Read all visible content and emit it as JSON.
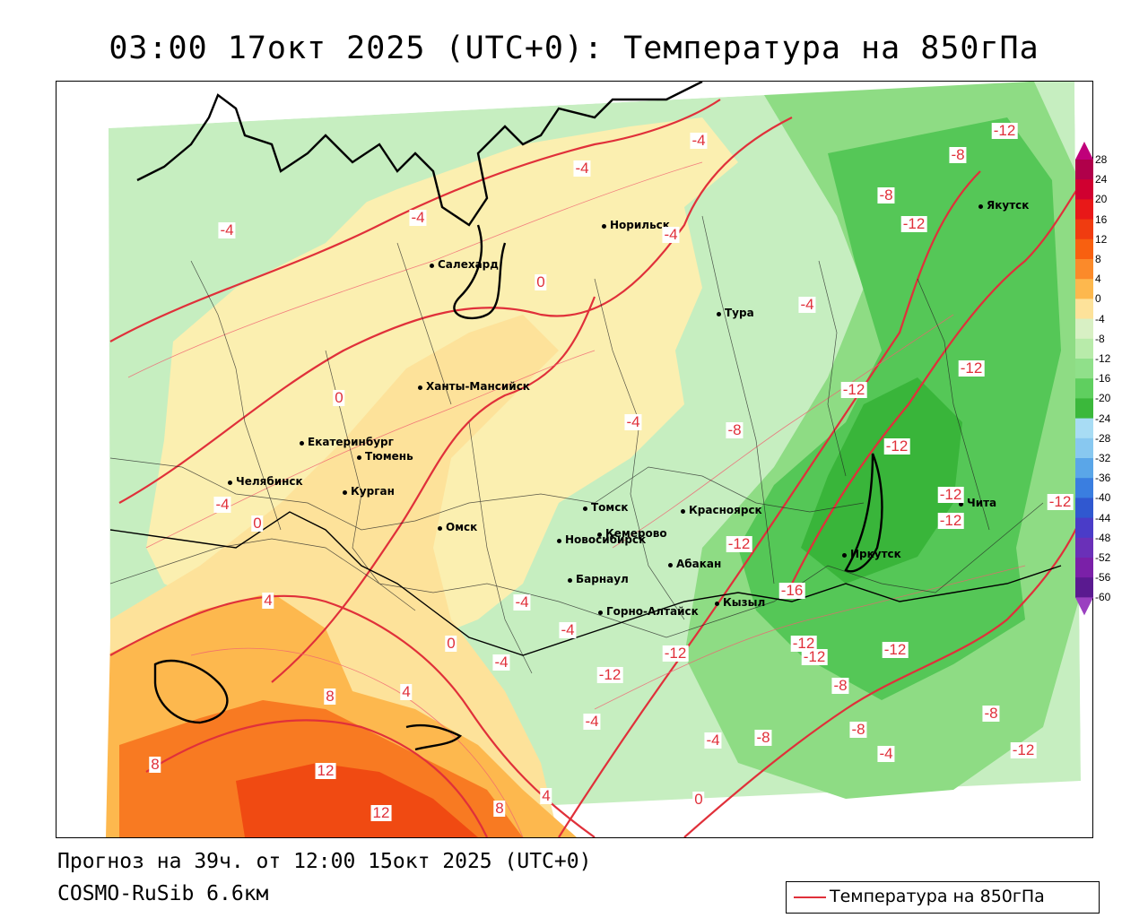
{
  "title": "03:00 17окт 2025 (UTC+0): Температура на 850гПа",
  "footer": {
    "forecast": "Прогноз на 39ч. от 12:00 15окт 2025 (UTC+0)",
    "model": "COSMO-RuSib 6.6км"
  },
  "legend": {
    "label": "Температура на 850гПа",
    "line_color": "#e0303a"
  },
  "colorbar": {
    "ticks": [
      "28",
      "24",
      "20",
      "16",
      "12",
      "8",
      "4",
      "0",
      "-4",
      "-8",
      "-12",
      "-16",
      "-20",
      "-24",
      "-28",
      "-32",
      "-36",
      "-40",
      "-44",
      "-48",
      "-52",
      "-56",
      "-60"
    ],
    "colors": [
      "#b0004a",
      "#d00030",
      "#e81818",
      "#f03c10",
      "#f86010",
      "#fb8a2a",
      "#fdb84e",
      "#fde29a",
      "#d8f0c4",
      "#b8ebaa",
      "#90e08a",
      "#5fcf5f",
      "#3bb83b",
      "#a8dcf4",
      "#88c8f0",
      "#5aa6e8",
      "#3a7ee0",
      "#3058d0",
      "#4a3cc8",
      "#6a30b8",
      "#7a20a8",
      "#5a1a90"
    ]
  },
  "cities": [
    {
      "name": "Норильск"
    },
    {
      "name": "Салехард"
    },
    {
      "name": "Тура"
    },
    {
      "name": "Якутск"
    },
    {
      "name": "Ханты-Мансийск"
    },
    {
      "name": "Екатеринбург"
    },
    {
      "name": "Тюмень"
    },
    {
      "name": "Челябинск"
    },
    {
      "name": "Курган"
    },
    {
      "name": "Омск"
    },
    {
      "name": "Новосибирск"
    },
    {
      "name": "Томск"
    },
    {
      "name": "Кемерово"
    },
    {
      "name": "Красноярск"
    },
    {
      "name": "Абакан"
    },
    {
      "name": "Барнаул"
    },
    {
      "name": "Горно-Алтайск"
    },
    {
      "name": "Кызыл"
    },
    {
      "name": "Иркутск"
    },
    {
      "name": "Чита"
    }
  ],
  "isotherm_labels": [
    "-4",
    "-4",
    "-4",
    "-4",
    "-4",
    "-4",
    "-4",
    "-4",
    "-4",
    "-4",
    "-4",
    "-4",
    "-4",
    "-4",
    "0",
    "0",
    "0",
    "0",
    "0",
    "4",
    "4",
    "4",
    "8",
    "8",
    "8",
    "12",
    "12",
    "-8",
    "-8",
    "-8",
    "-8",
    "-8",
    "-8",
    "-8",
    "-12",
    "-12",
    "-12",
    "-12",
    "-12",
    "-12",
    "-12",
    "-12",
    "-12",
    "-12",
    "-12",
    "-12",
    "-12",
    "-12",
    "-12",
    "-16"
  ]
}
